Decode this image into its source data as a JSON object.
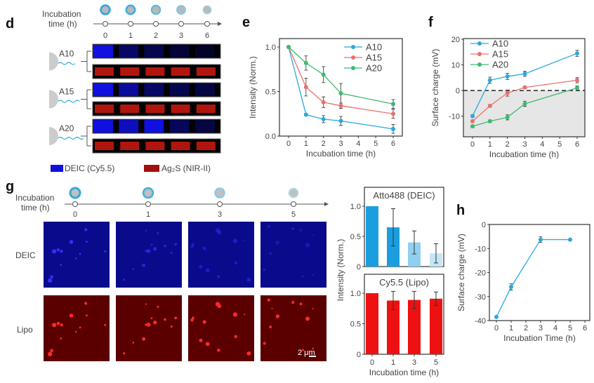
{
  "panels": {
    "d": {
      "label": "d",
      "timeline_title_1": "Incubation",
      "timeline_title_2": "time (h)",
      "times": [
        "0",
        "1",
        "2",
        "3",
        "6"
      ],
      "groups": [
        "A10",
        "A15",
        "A20"
      ],
      "legend": [
        "DEIC (Cy5.5)",
        "Ag₂S (NIR-II)"
      ],
      "colors": {
        "deic": "#1010e0",
        "ag2s": "#a01010"
      }
    },
    "g": {
      "label": "g",
      "timeline_title_1": "Incubation",
      "timeline_title_2": "time (h)",
      "times": [
        "0",
        "1",
        "3",
        "5"
      ],
      "rows": [
        "DEIC",
        "Lipo"
      ],
      "scale_bar": "2 μm"
    },
    "h": {
      "label": "h"
    },
    "e": {
      "label": "e"
    },
    "f": {
      "label": "f"
    }
  },
  "chart_data": [
    {
      "id": "e",
      "type": "line",
      "xlabel": "Incubation time (h)",
      "ylabel": "Intensity (Norm.)",
      "x": [
        0,
        1,
        2,
        3,
        6
      ],
      "xticks": [
        0,
        1,
        2,
        3,
        4,
        5,
        6
      ],
      "yticks": [
        "0.0",
        "0.5",
        "1.0"
      ],
      "ylim": [
        0,
        1.15
      ],
      "xlim": [
        -0.5,
        6.5
      ],
      "legend_position": "top-right",
      "series": [
        {
          "name": "A10",
          "color": "#29a8e0",
          "values": [
            1,
            0.24,
            0.19,
            0.17,
            0.08
          ],
          "errors": [
            0,
            0.01,
            0.04,
            0.05,
            0.05
          ]
        },
        {
          "name": "A15",
          "color": "#e8706e",
          "values": [
            1,
            0.55,
            0.38,
            0.34,
            0.25
          ],
          "errors": [
            0,
            0.1,
            0.06,
            0.03,
            0.05
          ]
        },
        {
          "name": "A20",
          "color": "#3dba6f",
          "values": [
            1,
            0.82,
            0.69,
            0.48,
            0.36
          ],
          "errors": [
            0,
            0.08,
            0.09,
            0.11,
            0.05
          ]
        }
      ]
    },
    {
      "id": "f",
      "type": "line",
      "xlabel": "Incubation time (h)",
      "ylabel": "Surface charge (mV)",
      "x": [
        0,
        1,
        2,
        3,
        6
      ],
      "xticks": [
        0,
        1,
        2,
        3,
        4,
        5,
        6
      ],
      "yticks": [
        "-10",
        "0",
        "10",
        "20"
      ],
      "ylim": [
        -18,
        20
      ],
      "xlim": [
        -0.4,
        6.4
      ],
      "zero_line": "dashed",
      "negative_region_shaded": "#e6e6e6",
      "legend_position": "top-left",
      "series": [
        {
          "name": "A10",
          "color": "#29a8e0",
          "values": [
            -10,
            4,
            5.5,
            6.5,
            14.5
          ],
          "errors": [
            0.5,
            1.2,
            1.2,
            1,
            1.2
          ]
        },
        {
          "name": "A15",
          "color": "#e8706e",
          "values": [
            -12,
            -6,
            -1,
            1.2,
            4
          ],
          "errors": [
            0.5,
            0.5,
            1.2,
            0.5,
            1
          ]
        },
        {
          "name": "A20",
          "color": "#3dba6f",
          "values": [
            -14,
            -12,
            -10.5,
            -5.2,
            1
          ],
          "errors": [
            0.5,
            0.5,
            1,
            1,
            0.8
          ]
        }
      ]
    },
    {
      "id": "g-top",
      "type": "bar",
      "title": "Atto488 (DEIC)",
      "categories": [
        "0",
        "1",
        "3",
        "5"
      ],
      "values": [
        1.0,
        0.65,
        0.4,
        0.22
      ],
      "errors": [
        0,
        0.31,
        0.19,
        0.16
      ],
      "colors": [
        "#1b9ee0",
        "#1b9ee0",
        "#8fd0f0",
        "#c6e6f6"
      ],
      "yticks": [
        "0",
        "0.5",
        "1.0"
      ],
      "ylim": [
        0,
        1.3
      ]
    },
    {
      "id": "g-bottom",
      "type": "bar",
      "title": "Cy5.5 (Lipo)",
      "categories": [
        "0",
        "1",
        "3",
        "5"
      ],
      "values": [
        1.0,
        0.88,
        0.89,
        0.91
      ],
      "errors": [
        0,
        0.15,
        0.14,
        0.11
      ],
      "colors": [
        "#ee1111",
        "#ee1111",
        "#ee1111",
        "#ee1111"
      ],
      "yticks": [
        "0",
        "0.5",
        "1.0"
      ],
      "ylim": [
        0,
        1.3
      ],
      "xlabel": "Incubation time (h)",
      "ylabel": "Intensity (Norm.)"
    },
    {
      "id": "h",
      "type": "line",
      "xlabel": "Incubation Time (h)",
      "ylabel": "Surface charge (mV)",
      "x": [
        0,
        1,
        3,
        5
      ],
      "xticks": [
        0,
        1,
        2,
        3,
        4,
        5,
        6
      ],
      "yticks": [
        "-40",
        "-30",
        "-20",
        "-10",
        "0"
      ],
      "ylim": [
        -40,
        0
      ],
      "xlim": [
        -0.25,
        6
      ],
      "series": [
        {
          "color": "#29a8e0",
          "values": [
            -38.5,
            -26,
            -6.3,
            -6.3
          ],
          "errors": [
            0.3,
            1.3,
            1.2,
            0.3
          ]
        }
      ]
    }
  ]
}
